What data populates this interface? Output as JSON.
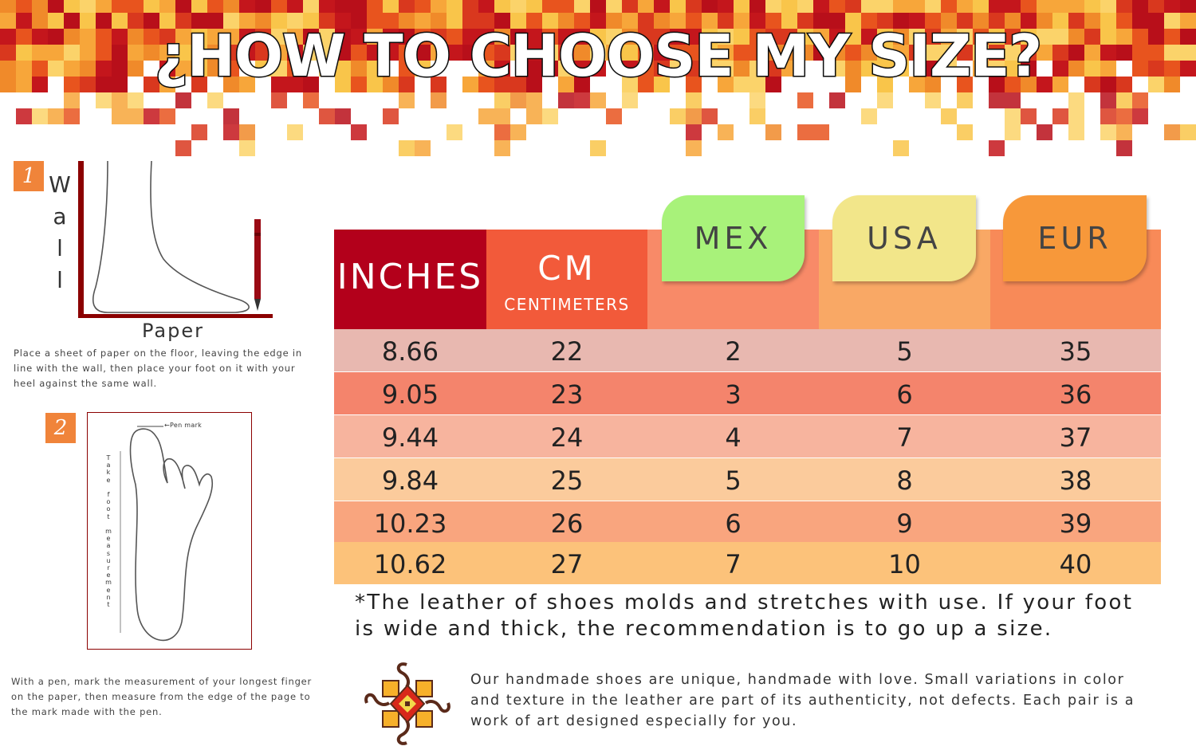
{
  "title": "¿HOW TO CHOOSE MY SIZE?",
  "steps": [
    {
      "badge": "1",
      "wall_label": "Wall",
      "paper_label": "Paper",
      "text": "Place a sheet of paper on the floor, leaving the edge in line with the wall, then place your foot on it with your heel against the same wall."
    },
    {
      "badge": "2",
      "pen_mark_label": "Pen mark",
      "measure_label": "Take foot measurement",
      "text": "With a pen, mark the measurement of your longest finger on the paper, then measure from the edge of the page to the mark made with the pen."
    }
  ],
  "size_table": {
    "headers": {
      "inches": "INCHES",
      "cm": "CM",
      "cm_sub": "CENTIMETERS",
      "mex": "MEX",
      "usa": "USA",
      "eur": "EUR"
    },
    "rows": [
      [
        "8.66",
        "22",
        "2",
        "5",
        "35"
      ],
      [
        "9.05",
        "23",
        "3",
        "6",
        "36"
      ],
      [
        "9.44",
        "24",
        "4",
        "7",
        "37"
      ],
      [
        "9.84",
        "25",
        "5",
        "8",
        "38"
      ],
      [
        "10.23",
        "26",
        "6",
        "9",
        "39"
      ],
      [
        "10.62",
        "27",
        "7",
        "10",
        "40"
      ]
    ]
  },
  "note": "*The leather of shoes molds and stretches with use. If your foot is wide and thick, the recommendation is to go up a size.",
  "handmade_text": "Our handmade shoes are unique, handmade with love. Small variations in color and texture in the leather are part of its authenticity, not defects. Each pair is a work of art designed especially for you.",
  "colors": {
    "inches_header": "#b3001b",
    "cm_header": "#f25a3a",
    "mex_tab": "#a8f27a",
    "usa_tab": "#f2e68a",
    "eur_tab": "#f7983a",
    "row_bands": [
      "#e8b8b0",
      "#f4846c",
      "#f7b49e",
      "#fbcb9c",
      "#f9a57e",
      "#fcc27a"
    ],
    "step_badge": "#f0843a",
    "outline_dark_red": "#8b0000"
  }
}
